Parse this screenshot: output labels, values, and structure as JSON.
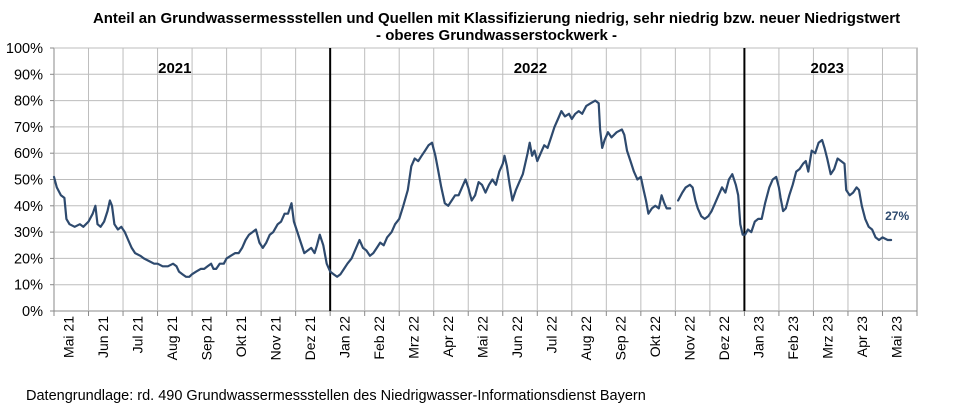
{
  "chart_data": {
    "type": "line",
    "title": "Anteil an Grundwassermessstellen und Quellen mit Klassifizierung niedrig, sehr niedrig bzw. neuer Niedrigstwert",
    "subtitle": "- oberes Grundwasserstockwerk -",
    "source": "Datengrundlage:  rd. 490 Grundwassermessstellen  des Niedrigwasser-Informationsdienst  Bayern",
    "x_tick_labels": [
      "Mai 21",
      "Jun 21",
      "Jul 21",
      "Aug 21",
      "Sep 21",
      "Okt 21",
      "Nov 21",
      "Dez 21",
      "Jan 22",
      "Feb 22",
      "Mrz 22",
      "Apr 22",
      "Mai 22",
      "Jun 22",
      "Jul 22",
      "Aug 22",
      "Sep 22",
      "Okt 22",
      "Nov 22",
      "Dez 22",
      "Jan 23",
      "Feb 23",
      "Mrz 23",
      "Apr 23",
      "Mai 23"
    ],
    "y_tick_labels": [
      "0%",
      "10%",
      "20%",
      "30%",
      "40%",
      "50%",
      "60%",
      "70%",
      "80%",
      "90%",
      "100%"
    ],
    "ylim": [
      0,
      100
    ],
    "grid": true,
    "year_labels": [
      "2021",
      "2022",
      "2023"
    ],
    "year_dividers": [
      "Jan 22",
      "Jan 23"
    ],
    "last_value_label": "27%",
    "series_color": "#2e4a6e",
    "points": [
      [
        0.0,
        51
      ],
      [
        0.08,
        47
      ],
      [
        0.2,
        44
      ],
      [
        0.3,
        43
      ],
      [
        0.36,
        35
      ],
      [
        0.45,
        33
      ],
      [
        0.6,
        32
      ],
      [
        0.75,
        33
      ],
      [
        0.85,
        32
      ],
      [
        1.0,
        34
      ],
      [
        1.12,
        37
      ],
      [
        1.2,
        40
      ],
      [
        1.26,
        33
      ],
      [
        1.35,
        32
      ],
      [
        1.45,
        34
      ],
      [
        1.55,
        38
      ],
      [
        1.62,
        42
      ],
      [
        1.68,
        40
      ],
      [
        1.75,
        33
      ],
      [
        1.85,
        31
      ],
      [
        1.95,
        32
      ],
      [
        2.05,
        30
      ],
      [
        2.15,
        27
      ],
      [
        2.25,
        24
      ],
      [
        2.35,
        22
      ],
      [
        2.5,
        21
      ],
      [
        2.6,
        20
      ],
      [
        2.75,
        19
      ],
      [
        2.9,
        18
      ],
      [
        3.0,
        18
      ],
      [
        3.15,
        17
      ],
      [
        3.3,
        17
      ],
      [
        3.45,
        18
      ],
      [
        3.55,
        17
      ],
      [
        3.62,
        15
      ],
      [
        3.72,
        14
      ],
      [
        3.82,
        13
      ],
      [
        3.92,
        13
      ],
      [
        4.0,
        14
      ],
      [
        4.12,
        15
      ],
      [
        4.25,
        16
      ],
      [
        4.35,
        16
      ],
      [
        4.45,
        17
      ],
      [
        4.55,
        18
      ],
      [
        4.62,
        16
      ],
      [
        4.7,
        16
      ],
      [
        4.8,
        18
      ],
      [
        4.92,
        18
      ],
      [
        5.0,
        20
      ],
      [
        5.12,
        21
      ],
      [
        5.25,
        22
      ],
      [
        5.35,
        22
      ],
      [
        5.45,
        24
      ],
      [
        5.55,
        27
      ],
      [
        5.65,
        29
      ],
      [
        5.75,
        30
      ],
      [
        5.85,
        31
      ],
      [
        5.95,
        26
      ],
      [
        6.05,
        24
      ],
      [
        6.15,
        26
      ],
      [
        6.25,
        29
      ],
      [
        6.35,
        30
      ],
      [
        6.48,
        33
      ],
      [
        6.58,
        34
      ],
      [
        6.68,
        37
      ],
      [
        6.78,
        37
      ],
      [
        6.88,
        41
      ],
      [
        6.95,
        34
      ],
      [
        7.05,
        30
      ],
      [
        7.15,
        26
      ],
      [
        7.25,
        22
      ],
      [
        7.35,
        23
      ],
      [
        7.45,
        24
      ],
      [
        7.55,
        22
      ],
      [
        7.62,
        25
      ],
      [
        7.7,
        29
      ],
      [
        7.8,
        25
      ],
      [
        7.9,
        18
      ],
      [
        8.0,
        15
      ],
      [
        8.1,
        14
      ],
      [
        8.2,
        13
      ],
      [
        8.3,
        14
      ],
      [
        8.4,
        16
      ],
      [
        8.5,
        18
      ],
      [
        8.62,
        20
      ],
      [
        8.75,
        24
      ],
      [
        8.85,
        27
      ],
      [
        8.95,
        24
      ],
      [
        9.05,
        23
      ],
      [
        9.15,
        21
      ],
      [
        9.25,
        22
      ],
      [
        9.35,
        24
      ],
      [
        9.45,
        26
      ],
      [
        9.55,
        25
      ],
      [
        9.65,
        28
      ],
      [
        9.78,
        30
      ],
      [
        9.88,
        33
      ],
      [
        10.0,
        35
      ],
      [
        10.12,
        40
      ],
      [
        10.25,
        46
      ],
      [
        10.35,
        55
      ],
      [
        10.45,
        58
      ],
      [
        10.55,
        57
      ],
      [
        10.65,
        59
      ],
      [
        10.75,
        61
      ],
      [
        10.85,
        63
      ],
      [
        10.95,
        64
      ],
      [
        11.05,
        59
      ],
      [
        11.12,
        54
      ],
      [
        11.22,
        47
      ],
      [
        11.32,
        41
      ],
      [
        11.42,
        40
      ],
      [
        11.52,
        42
      ],
      [
        11.62,
        44
      ],
      [
        11.72,
        44
      ],
      [
        11.82,
        47
      ],
      [
        11.92,
        50
      ],
      [
        12.0,
        47
      ],
      [
        12.1,
        42
      ],
      [
        12.2,
        44
      ],
      [
        12.3,
        49
      ],
      [
        12.4,
        48
      ],
      [
        12.5,
        45
      ],
      [
        12.6,
        48
      ],
      [
        12.7,
        50
      ],
      [
        12.8,
        48
      ],
      [
        12.9,
        53
      ],
      [
        13.0,
        56
      ],
      [
        13.05,
        59
      ],
      [
        13.12,
        55
      ],
      [
        13.2,
        48
      ],
      [
        13.28,
        42
      ],
      [
        13.38,
        46
      ],
      [
        13.48,
        49
      ],
      [
        13.58,
        52
      ],
      [
        13.65,
        56
      ],
      [
        13.72,
        60
      ],
      [
        13.78,
        64
      ],
      [
        13.85,
        59
      ],
      [
        13.92,
        61
      ],
      [
        14.0,
        57
      ],
      [
        14.1,
        60
      ],
      [
        14.2,
        63
      ],
      [
        14.3,
        62
      ],
      [
        14.4,
        66
      ],
      [
        14.5,
        70
      ],
      [
        14.6,
        73
      ],
      [
        14.7,
        76
      ],
      [
        14.8,
        74
      ],
      [
        14.92,
        75
      ],
      [
        15.0,
        73
      ],
      [
        15.1,
        75
      ],
      [
        15.2,
        76
      ],
      [
        15.3,
        75
      ],
      [
        15.42,
        78
      ],
      [
        15.55,
        79
      ],
      [
        15.68,
        80
      ],
      [
        15.78,
        79
      ],
      [
        15.82,
        69
      ],
      [
        15.88,
        62
      ],
      [
        15.95,
        65
      ],
      [
        16.05,
        68
      ],
      [
        16.15,
        66
      ],
      [
        16.3,
        68
      ],
      [
        16.45,
        69
      ],
      [
        16.52,
        67
      ],
      [
        16.6,
        61
      ],
      [
        16.7,
        57
      ],
      [
        16.8,
        53
      ],
      [
        16.9,
        50
      ],
      [
        17.0,
        51
      ],
      [
        17.08,
        46
      ],
      [
        17.15,
        42
      ],
      [
        17.22,
        37
      ],
      [
        17.32,
        39
      ],
      [
        17.42,
        40
      ],
      [
        17.52,
        39
      ],
      [
        17.6,
        44
      ],
      [
        17.68,
        41
      ],
      [
        17.75,
        39
      ],
      [
        17.85,
        39
      ],
      [
        18.0,
        43
      ],
      [
        18.08,
        42
      ],
      [
        18.2,
        45
      ],
      [
        18.3,
        47
      ],
      [
        18.42,
        48
      ],
      [
        18.5,
        47
      ],
      [
        18.58,
        42
      ],
      [
        18.65,
        39
      ],
      [
        18.75,
        36
      ],
      [
        18.85,
        35
      ],
      [
        18.95,
        36
      ],
      [
        19.05,
        38
      ],
      [
        19.15,
        41
      ],
      [
        19.25,
        44
      ],
      [
        19.35,
        47
      ],
      [
        19.45,
        45
      ],
      [
        19.55,
        50
      ],
      [
        19.65,
        52
      ],
      [
        19.75,
        48
      ],
      [
        19.82,
        44
      ],
      [
        19.88,
        33
      ],
      [
        19.95,
        29
      ],
      [
        20.02,
        29
      ],
      [
        20.1,
        31
      ],
      [
        20.2,
        30
      ],
      [
        20.3,
        34
      ],
      [
        20.4,
        35
      ],
      [
        20.5,
        35
      ],
      [
        20.6,
        41
      ],
      [
        20.72,
        47
      ],
      [
        20.82,
        50
      ],
      [
        20.92,
        51
      ],
      [
        21.0,
        47
      ],
      [
        21.05,
        43
      ],
      [
        21.12,
        38
      ],
      [
        21.2,
        39
      ],
      [
        21.3,
        44
      ],
      [
        21.4,
        48
      ],
      [
        21.5,
        53
      ],
      [
        21.6,
        54
      ],
      [
        21.7,
        56
      ],
      [
        21.78,
        57
      ],
      [
        21.85,
        53
      ],
      [
        21.95,
        61
      ],
      [
        22.05,
        60
      ],
      [
        22.15,
        64
      ],
      [
        22.25,
        65
      ],
      [
        22.32,
        62
      ],
      [
        22.4,
        58
      ],
      [
        22.5,
        52
      ],
      [
        22.6,
        54
      ],
      [
        22.7,
        58
      ],
      [
        22.8,
        57
      ],
      [
        22.9,
        56
      ],
      [
        22.95,
        46
      ],
      [
        23.05,
        44
      ],
      [
        23.15,
        45
      ],
      [
        23.25,
        47
      ],
      [
        23.32,
        46
      ],
      [
        23.4,
        40
      ],
      [
        23.5,
        35
      ],
      [
        23.6,
        32
      ],
      [
        23.7,
        31
      ],
      [
        23.8,
        28
      ],
      [
        23.9,
        27
      ],
      [
        24.0,
        28
      ],
      [
        24.15,
        27
      ],
      [
        24.25,
        27
      ]
    ],
    "gaps_after_x": [
      17.85,
      18.0
    ]
  }
}
